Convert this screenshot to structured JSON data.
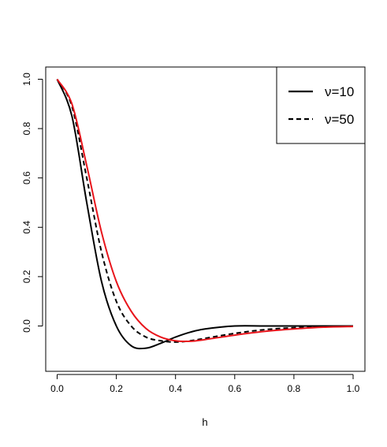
{
  "chart_data": {
    "type": "line",
    "title": "",
    "xlabel": "h",
    "ylabel": "",
    "xlim": [
      0.0,
      1.0
    ],
    "ylim": [
      -0.09,
      1.0
    ],
    "x_ticks": [
      "0.0",
      "0.2",
      "0.4",
      "0.6",
      "0.8",
      "1.0"
    ],
    "y_ticks": [
      "0.0",
      "0.2",
      "0.4",
      "0.6",
      "0.8",
      "1.0"
    ],
    "x_tick_values": [
      0.0,
      0.2,
      0.4,
      0.6,
      0.8,
      1.0
    ],
    "y_tick_values": [
      0.0,
      0.2,
      0.4,
      0.6,
      0.8,
      1.0
    ],
    "grid": false,
    "legend_position": "top-right",
    "legend": [
      {
        "label": "ν=10",
        "style": "solid",
        "color": "#000000"
      },
      {
        "label": "ν=50",
        "style": "dashed",
        "color": "#000000"
      }
    ],
    "x": [
      0.0,
      0.05,
      0.1,
      0.15,
      0.2,
      0.25,
      0.3,
      0.35,
      0.4,
      0.45,
      0.5,
      0.6,
      0.7,
      0.8,
      0.9,
      1.0
    ],
    "series": [
      {
        "name": "ν=10",
        "style": "solid",
        "color": "#000000",
        "values": [
          1.0,
          0.85,
          0.5,
          0.18,
          0.0,
          -0.08,
          -0.09,
          -0.07,
          -0.045,
          -0.025,
          -0.012,
          0.0,
          0.0,
          0.0,
          0.0,
          0.0
        ]
      },
      {
        "name": "ν=50",
        "style": "dashed",
        "color": "#000000",
        "values": [
          1.0,
          0.89,
          0.6,
          0.3,
          0.1,
          0.0,
          -0.045,
          -0.06,
          -0.065,
          -0.06,
          -0.05,
          -0.03,
          -0.015,
          -0.007,
          -0.003,
          0.0
        ]
      },
      {
        "style": "solid",
        "color": "#e8141b",
        "values": [
          1.0,
          0.9,
          0.65,
          0.38,
          0.18,
          0.06,
          -0.01,
          -0.045,
          -0.06,
          -0.062,
          -0.055,
          -0.037,
          -0.022,
          -0.012,
          -0.005,
          -0.002
        ]
      }
    ]
  }
}
